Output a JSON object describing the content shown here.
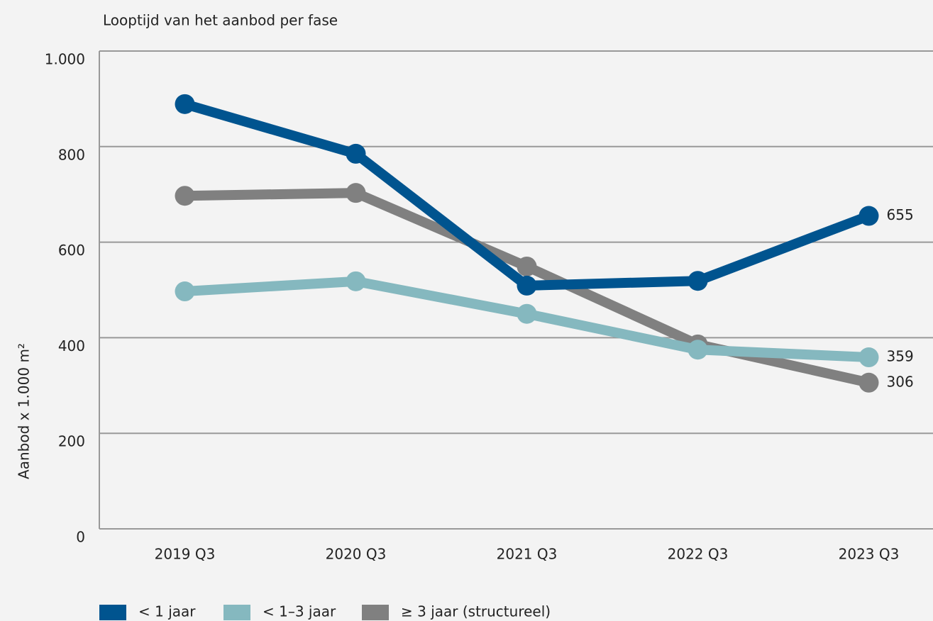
{
  "chart_data": {
    "type": "line",
    "title": "Looptijd van het aanbod per fase",
    "y_label": "Aanbod x 1.000 m²",
    "categories": [
      "2019 Q3",
      "2020 Q3",
      "2021 Q3",
      "2022 Q3",
      "2023 Q3"
    ],
    "series": [
      {
        "name": "< 1 jaar",
        "color": "#00548f",
        "values": [
          889,
          785,
          509,
          519,
          655
        ]
      },
      {
        "name": "< 1–3 jaar",
        "color": "#85b8bf",
        "values": [
          497,
          518,
          450,
          375,
          359
        ]
      },
      {
        "name": "≥ 3 jaar (structureel)",
        "color": "#808080",
        "values": [
          697,
          703,
          549,
          386,
          306
        ]
      }
    ],
    "ylim": [
      0,
      1000
    ],
    "yticks": [
      0,
      200,
      400,
      600,
      800,
      {
        "value": 1000,
        "label": "1.000"
      }
    ],
    "grid": true
  }
}
